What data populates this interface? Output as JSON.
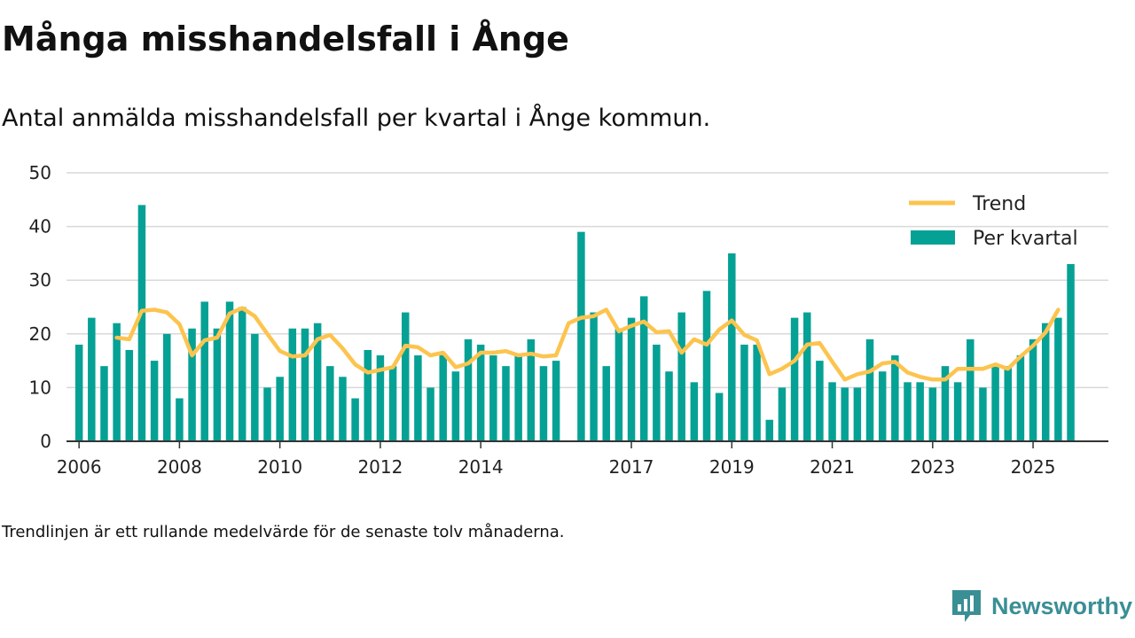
{
  "page": {
    "title": "Många misshandelsfall i Ånge",
    "subtitle": "Antal anmälda misshandelsfall per kvartal i Ånge kommun.",
    "footnote": "Trendlinjen är ett rullande medelvärde för de senaste tolv månaderna.",
    "brand": "Newsworthy"
  },
  "colors": {
    "bar": "#06a195",
    "trend": "#fcc44f",
    "grid": "#d9d9d9",
    "axis": "#333333",
    "brand": "#3a8f95"
  },
  "chart_data": {
    "type": "bar",
    "title": "Många misshandelsfall i Ånge",
    "ylim": [
      0,
      50
    ],
    "yticks": [
      0,
      10,
      20,
      30,
      40,
      50
    ],
    "xlim": [
      2005.75,
      2026.5
    ],
    "xticks": [
      {
        "label": "2006",
        "x": 2006.0
      },
      {
        "label": "2008",
        "x": 2008.0
      },
      {
        "label": "2010",
        "x": 2010.0
      },
      {
        "label": "2012",
        "x": 2012.0
      },
      {
        "label": "2014",
        "x": 2014.0
      },
      {
        "label": "2017",
        "x": 2017.0
      },
      {
        "label": "2019",
        "x": 2019.0
      },
      {
        "label": "2021",
        "x": 2021.0
      },
      {
        "label": "2023",
        "x": 2023.0
      },
      {
        "label": "2025",
        "x": 2025.0
      }
    ],
    "legend": {
      "position": "top-right",
      "trend_label": "Trend",
      "bars_label": "Per kvartal"
    },
    "series": [
      {
        "name": "Per kvartal",
        "type": "bar",
        "start": 2006.0,
        "step": 0.25,
        "values": [
          18,
          23,
          14,
          22,
          17,
          44,
          15,
          20,
          8,
          21,
          26,
          21,
          26,
          25,
          20,
          10,
          12,
          21,
          21,
          22,
          14,
          12,
          8,
          17,
          16,
          14,
          24,
          16,
          10,
          16,
          13,
          19,
          18,
          16,
          14,
          16,
          19,
          14,
          15,
          null,
          39,
          24,
          14,
          21,
          23,
          27,
          18,
          13,
          24,
          11,
          28,
          9,
          35,
          18,
          18,
          4,
          10,
          23,
          24,
          15,
          11,
          10,
          10,
          19,
          13,
          16,
          11,
          11,
          10,
          14,
          11,
          19,
          10,
          14,
          14,
          16,
          19,
          22,
          23,
          33
        ]
      },
      {
        "name": "Trend",
        "type": "line",
        "start": 2006.75,
        "step": 0.25,
        "values": [
          19.3,
          19.0,
          24.3,
          24.5,
          24.0,
          21.8,
          16.0,
          18.8,
          19.3,
          23.8,
          24.8,
          23.3,
          20.0,
          16.8,
          15.8,
          16.0,
          19.0,
          19.8,
          17.3,
          14.3,
          12.8,
          13.3,
          13.8,
          17.8,
          17.5,
          16.0,
          16.5,
          13.8,
          14.5,
          16.5,
          16.5,
          16.8,
          16.0,
          16.3,
          15.8,
          16.0,
          22.0,
          23.0,
          23.3,
          24.5,
          20.5,
          21.5,
          22.3,
          20.3,
          20.5,
          16.5,
          19.0,
          18.0,
          20.8,
          22.5,
          19.8,
          18.8,
          12.5,
          13.5,
          15.0,
          18.0,
          18.3,
          14.8,
          11.5,
          12.5,
          13.0,
          14.5,
          14.8,
          12.8,
          12.0,
          11.5,
          11.5,
          13.5,
          13.5,
          13.5,
          14.3,
          13.5,
          15.8,
          17.8,
          20.3,
          24.5
        ]
      }
    ]
  }
}
